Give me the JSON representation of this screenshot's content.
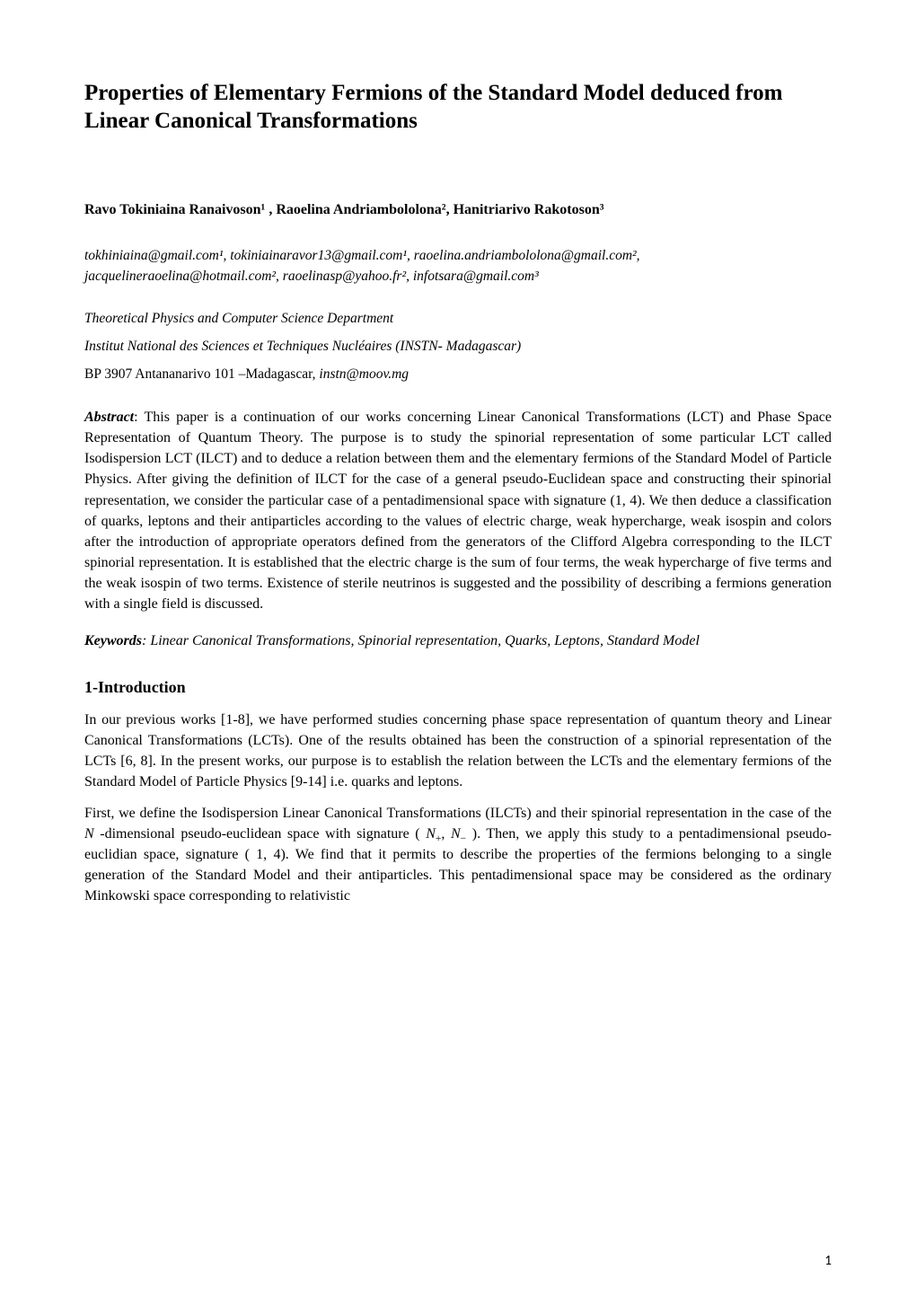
{
  "title": "Properties of Elementary Fermions of the Standard Model deduced from Linear Canonical Transformations",
  "authors_line": "Ravo Tokiniaina Ranaivoson¹ ,  Raoelina Andriambololona²,  Hanitriarivo Rakotoson³",
  "emails_line": "tokhiniaina@gmail.com¹, tokiniainaravor13@gmail.com¹, raoelina.andriambololona@gmail.com², jacquelineraoelina@hotmail.com², raoelinasp@yahoo.fr², infotsara@gmail.com³",
  "affil_1": "Theoretical Physics and Computer Science Department",
  "affil_2": "Institut National des Sciences et Techniques Nucléaires (INSTN- Madagascar)",
  "affil_3_plain": "BP 3907  Antananarivo 101 –Madagascar, ",
  "affil_3_italic": "instn@moov.mg",
  "abstract_label": "Abstract",
  "abstract_text": ": This paper is a continuation of our works concerning Linear Canonical Transformations (LCT) and Phase Space Representation of Quantum Theory. The purpose is to study the spinorial representation of  some particular LCT called Isodispersion LCT (ILCT) and to deduce a relation between them and the elementary fermions of the Standard Model of Particle Physics. After giving the definition of ILCT for the case of a general pseudo-Euclidean space and constructing their spinorial representation, we consider the particular case of a pentadimensional space with signature (1, 4). We then deduce a classification of quarks, leptons and their antiparticles according to the values of electric charge, weak hypercharge, weak isospin and colors after the introduction of appropriate operators defined from the generators of the Clifford Algebra corresponding to the ILCT spinorial representation. It is established that the electric charge is the sum of four terms, the weak hypercharge of five terms and the weak isospin of two terms. Existence of sterile neutrinos is suggested and the possibility of describing a fermions generation with a single field is discussed.",
  "keywords_label": "Keywords",
  "keywords_text": ": Linear Canonical Transformations, Spinorial representation, Quarks, Leptons, Standard Model",
  "section_heading": "1-Introduction",
  "intro_p1": "In our previous works [1-8], we have performed studies concerning phase space representation of quantum theory and Linear Canonical Transformations (LCTs). One of the results obtained has been the construction of a spinorial representation of the LCTs [6, 8]. In the present works, our purpose is to establish the relation between the LCTs and the elementary fermions of the Standard Model of Particle Physics [9-14] i.e. quarks and leptons.",
  "intro_p2_a": " First, we define the Isodispersion Linear Canonical Transformations (ILCTs) and their spinorial representation in the case of the ",
  "intro_p2_N": "N",
  "intro_p2_b": " -dimensional pseudo-euclidean space with signature ( ",
  "intro_p2_Np": "N",
  "intro_p2_plus": "+",
  "intro_p2_c": ", ",
  "intro_p2_Nm": "N",
  "intro_p2_minus": "−",
  "intro_p2_d": " ). Then, we apply this study to a pentadimensional pseudo- euclidian space, signature ( 1, 4).  We find that it permits to describe the properties of the fermions belonging to a single generation of the Standard Model and their antiparticles. This pentadimensional space may be considered as the ordinary Minkowski space corresponding to relativistic",
  "page_number": "1"
}
